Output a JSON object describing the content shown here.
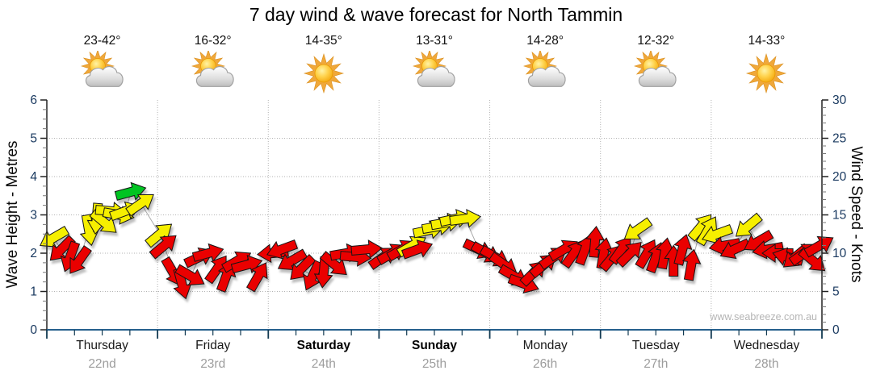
{
  "page": {
    "title": "7 day wind & wave forecast for North Tammin",
    "watermark": "www.seabreeze.com.au"
  },
  "forecast_days": [
    {
      "name": "Thursday",
      "date": "22nd",
      "temp": "23-42°",
      "icon": "sun-cloud",
      "weekend": false
    },
    {
      "name": "Friday",
      "date": "23rd",
      "temp": "16-32°",
      "icon": "sun-cloud",
      "weekend": false
    },
    {
      "name": "Saturday",
      "date": "24th",
      "temp": "14-35°",
      "icon": "sun",
      "weekend": true
    },
    {
      "name": "Sunday",
      "date": "25th",
      "temp": "13-31°",
      "icon": "sun-cloud",
      "weekend": true
    },
    {
      "name": "Monday",
      "date": "26th",
      "temp": "14-28°",
      "icon": "sun-cloud",
      "weekend": false
    },
    {
      "name": "Tuesday",
      "date": "27th",
      "temp": "12-32°",
      "icon": "sun-cloud",
      "weekend": false
    },
    {
      "name": "Wednesday",
      "date": "28th",
      "temp": "14-33°",
      "icon": "sun",
      "weekend": false
    }
  ],
  "chart_data": {
    "type": "scatter",
    "title": "7 day wind & wave forecast for North Tammin",
    "x_categories": [
      "Thursday 22nd",
      "Friday 23rd",
      "Saturday 24th",
      "Sunday 25th",
      "Monday 26th",
      "Tuesday 27th",
      "Wednesday 28th"
    ],
    "y_left": {
      "label": "Wave Height - Metres",
      "min": 0,
      "max": 6,
      "major_step": 1,
      "minor_step": 0.25,
      "gridlines": [
        1,
        2,
        3,
        4,
        5
      ]
    },
    "y_right": {
      "label": "Wind Speed - Knots",
      "min": 0,
      "max": 30,
      "major_step": 5,
      "minor_step": 1
    },
    "grid": "dotted",
    "legend": "none",
    "colors": {
      "red": "#ea0000",
      "yellow": "#f6ef00",
      "green": "#00c424",
      "outline": "#141414",
      "grid": "#b3b3b3",
      "axis_text": "#17375e",
      "baseline": "#26608d"
    },
    "wind_arrows": {
      "x_unit": "days from start of Thursday (0-7), each day spans 1.0",
      "speed_unit": "knots (right axis)",
      "dir_unit": "degrees, 0 = arrow pointing right/east, positive = clockwise (down)",
      "color_key": {
        "r": "red",
        "y": "yellow",
        "g": "green"
      },
      "points": [
        [
          0.06,
          12,
          150,
          "y"
        ],
        [
          0.13,
          10.5,
          135,
          "r"
        ],
        [
          0.21,
          9.5,
          110,
          "r"
        ],
        [
          0.29,
          9,
          125,
          "r"
        ],
        [
          0.38,
          13,
          80,
          "y"
        ],
        [
          0.45,
          14.5,
          95,
          "y"
        ],
        [
          0.52,
          14,
          40,
          "y"
        ],
        [
          0.58,
          15.5,
          5,
          "y"
        ],
        [
          0.65,
          15,
          10,
          "y"
        ],
        [
          0.71,
          15.5,
          -20,
          "y"
        ],
        [
          0.76,
          18,
          -15,
          "g"
        ],
        [
          0.85,
          16.5,
          -35,
          "y"
        ],
        [
          1.02,
          12.5,
          -40,
          "y"
        ],
        [
          1.06,
          11,
          -40,
          "r"
        ],
        [
          1.14,
          7.5,
          60,
          "r"
        ],
        [
          1.22,
          6,
          75,
          "r"
        ],
        [
          1.3,
          7,
          30,
          "r"
        ],
        [
          1.38,
          9.5,
          -25,
          "r"
        ],
        [
          1.46,
          10,
          -15,
          "r"
        ],
        [
          1.54,
          8,
          -55,
          "r"
        ],
        [
          1.62,
          7,
          -70,
          "r"
        ],
        [
          1.72,
          9,
          -30,
          "r"
        ],
        [
          1.81,
          8.5,
          -15,
          "r"
        ],
        [
          1.91,
          7,
          -60,
          "r"
        ],
        [
          2.04,
          10,
          175,
          "r"
        ],
        [
          2.12,
          10.5,
          160,
          "r"
        ],
        [
          2.21,
          9,
          150,
          "r"
        ],
        [
          2.3,
          8,
          135,
          "r"
        ],
        [
          2.4,
          7,
          115,
          "r"
        ],
        [
          2.5,
          7.5,
          95,
          "r"
        ],
        [
          2.6,
          8.5,
          40,
          "r"
        ],
        [
          2.7,
          10,
          -10,
          "r"
        ],
        [
          2.79,
          9.5,
          5,
          "r"
        ],
        [
          2.89,
          10.5,
          -5,
          "r"
        ],
        [
          3.04,
          9.5,
          -35,
          "r"
        ],
        [
          3.12,
          10,
          -30,
          "r"
        ],
        [
          3.21,
          10.5,
          -30,
          "r"
        ],
        [
          3.3,
          11,
          -30,
          "y"
        ],
        [
          3.35,
          10.5,
          -20,
          "r"
        ],
        [
          3.45,
          13,
          -12,
          "y"
        ],
        [
          3.53,
          13.5,
          -10,
          "y"
        ],
        [
          3.61,
          14,
          -10,
          "y"
        ],
        [
          3.69,
          14.5,
          -12,
          "y"
        ],
        [
          3.78,
          14.5,
          -8,
          "y"
        ],
        [
          3.9,
          10.5,
          25,
          "r"
        ],
        [
          3.97,
          10,
          30,
          "r"
        ],
        [
          4.05,
          9.5,
          30,
          "r"
        ],
        [
          4.13,
          8.5,
          35,
          "r"
        ],
        [
          4.22,
          7,
          30,
          "r"
        ],
        [
          4.31,
          6,
          20,
          "r"
        ],
        [
          4.4,
          7.5,
          -45,
          "r"
        ],
        [
          4.49,
          8.5,
          -40,
          "r"
        ],
        [
          4.58,
          9.5,
          -35,
          "r"
        ],
        [
          4.67,
          10.5,
          -30,
          "r"
        ],
        [
          4.76,
          10,
          -55,
          "r"
        ],
        [
          4.86,
          10.5,
          -70,
          "r"
        ],
        [
          4.95,
          11.5,
          -85,
          "r"
        ],
        [
          5.03,
          10,
          -80,
          "r"
        ],
        [
          5.11,
          9.5,
          -50,
          "r"
        ],
        [
          5.19,
          10.5,
          -55,
          "r"
        ],
        [
          5.27,
          10,
          -45,
          "r"
        ],
        [
          5.33,
          13,
          145,
          "y"
        ],
        [
          5.42,
          10,
          -60,
          "r"
        ],
        [
          5.5,
          9.5,
          -70,
          "r"
        ],
        [
          5.58,
          10,
          -80,
          "r"
        ],
        [
          5.66,
          9,
          -90,
          "r"
        ],
        [
          5.74,
          10.5,
          -75,
          "r"
        ],
        [
          5.82,
          8.5,
          -80,
          "r"
        ],
        [
          5.91,
          13.5,
          -50,
          "y"
        ],
        [
          5.97,
          13,
          -60,
          "y"
        ],
        [
          6.05,
          12.5,
          160,
          "y"
        ],
        [
          6.12,
          11,
          170,
          "r"
        ],
        [
          6.21,
          10.5,
          155,
          "r"
        ],
        [
          6.33,
          13.5,
          140,
          "y"
        ],
        [
          6.42,
          11.5,
          150,
          "r"
        ],
        [
          6.51,
          10.5,
          170,
          "r"
        ],
        [
          6.6,
          10,
          180,
          "r"
        ],
        [
          6.69,
          9.5,
          195,
          "r"
        ],
        [
          6.76,
          9.5,
          140,
          "r"
        ],
        [
          6.84,
          10,
          -35,
          "r"
        ],
        [
          6.92,
          9,
          40,
          "r"
        ],
        [
          6.98,
          11,
          -30,
          "r"
        ]
      ]
    }
  }
}
